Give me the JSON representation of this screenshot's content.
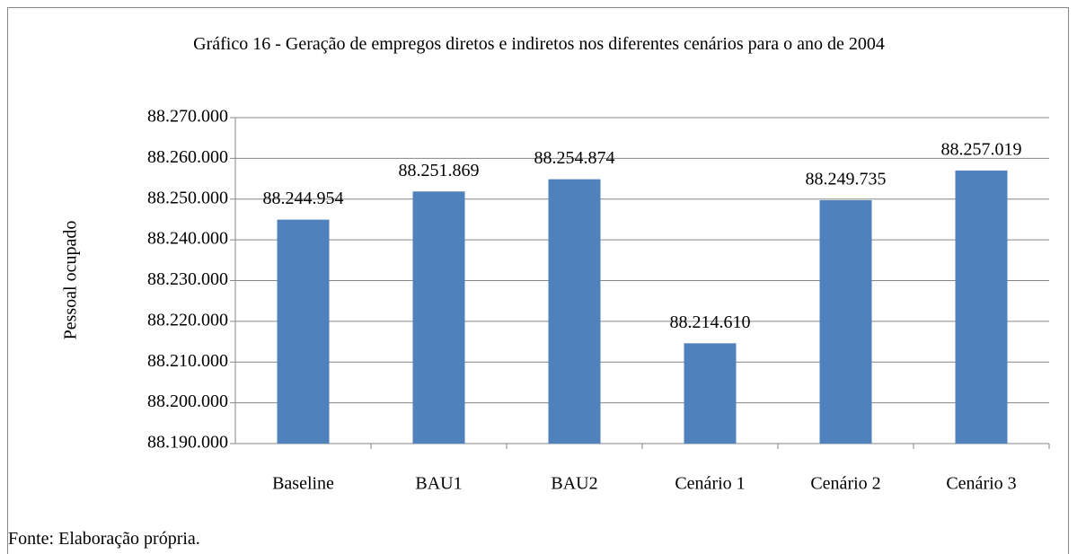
{
  "chart_data": {
    "type": "bar",
    "title": "Gráfico 16 - Geração de empregos diretos e indiretos nos diferentes cenários para o ano de 2004",
    "y_label": "Pessoal ocupado",
    "source": "Fonte: Elaboração própria.",
    "categories": [
      "Baseline",
      "BAU1",
      "BAU2",
      "Cenário 1",
      "Cenário 2",
      "Cenário 3"
    ],
    "values": [
      88244954,
      88251869,
      88254874,
      88214610,
      88249735,
      88257019
    ],
    "value_labels": [
      "88.244.954",
      "88.251.869",
      "88.254.874",
      "88.214.610",
      "88.249.735",
      "88.257.019"
    ],
    "color": "#4f81bd",
    "ylim": [
      88190000,
      88270000
    ],
    "yticks": [
      {
        "value": 88190000,
        "label": "88.190.000"
      },
      {
        "value": 88200000,
        "label": "88.200.000"
      },
      {
        "value": 88210000,
        "label": "88.210.000"
      },
      {
        "value": 88220000,
        "label": "88.220.000"
      },
      {
        "value": 88230000,
        "label": "88.230.000"
      },
      {
        "value": 88240000,
        "label": "88.240.000"
      },
      {
        "value": 88250000,
        "label": "88.250.000"
      },
      {
        "value": 88260000,
        "label": "88.260.000"
      },
      {
        "value": 88270000,
        "label": "88.270.000"
      }
    ],
    "grid": true
  }
}
